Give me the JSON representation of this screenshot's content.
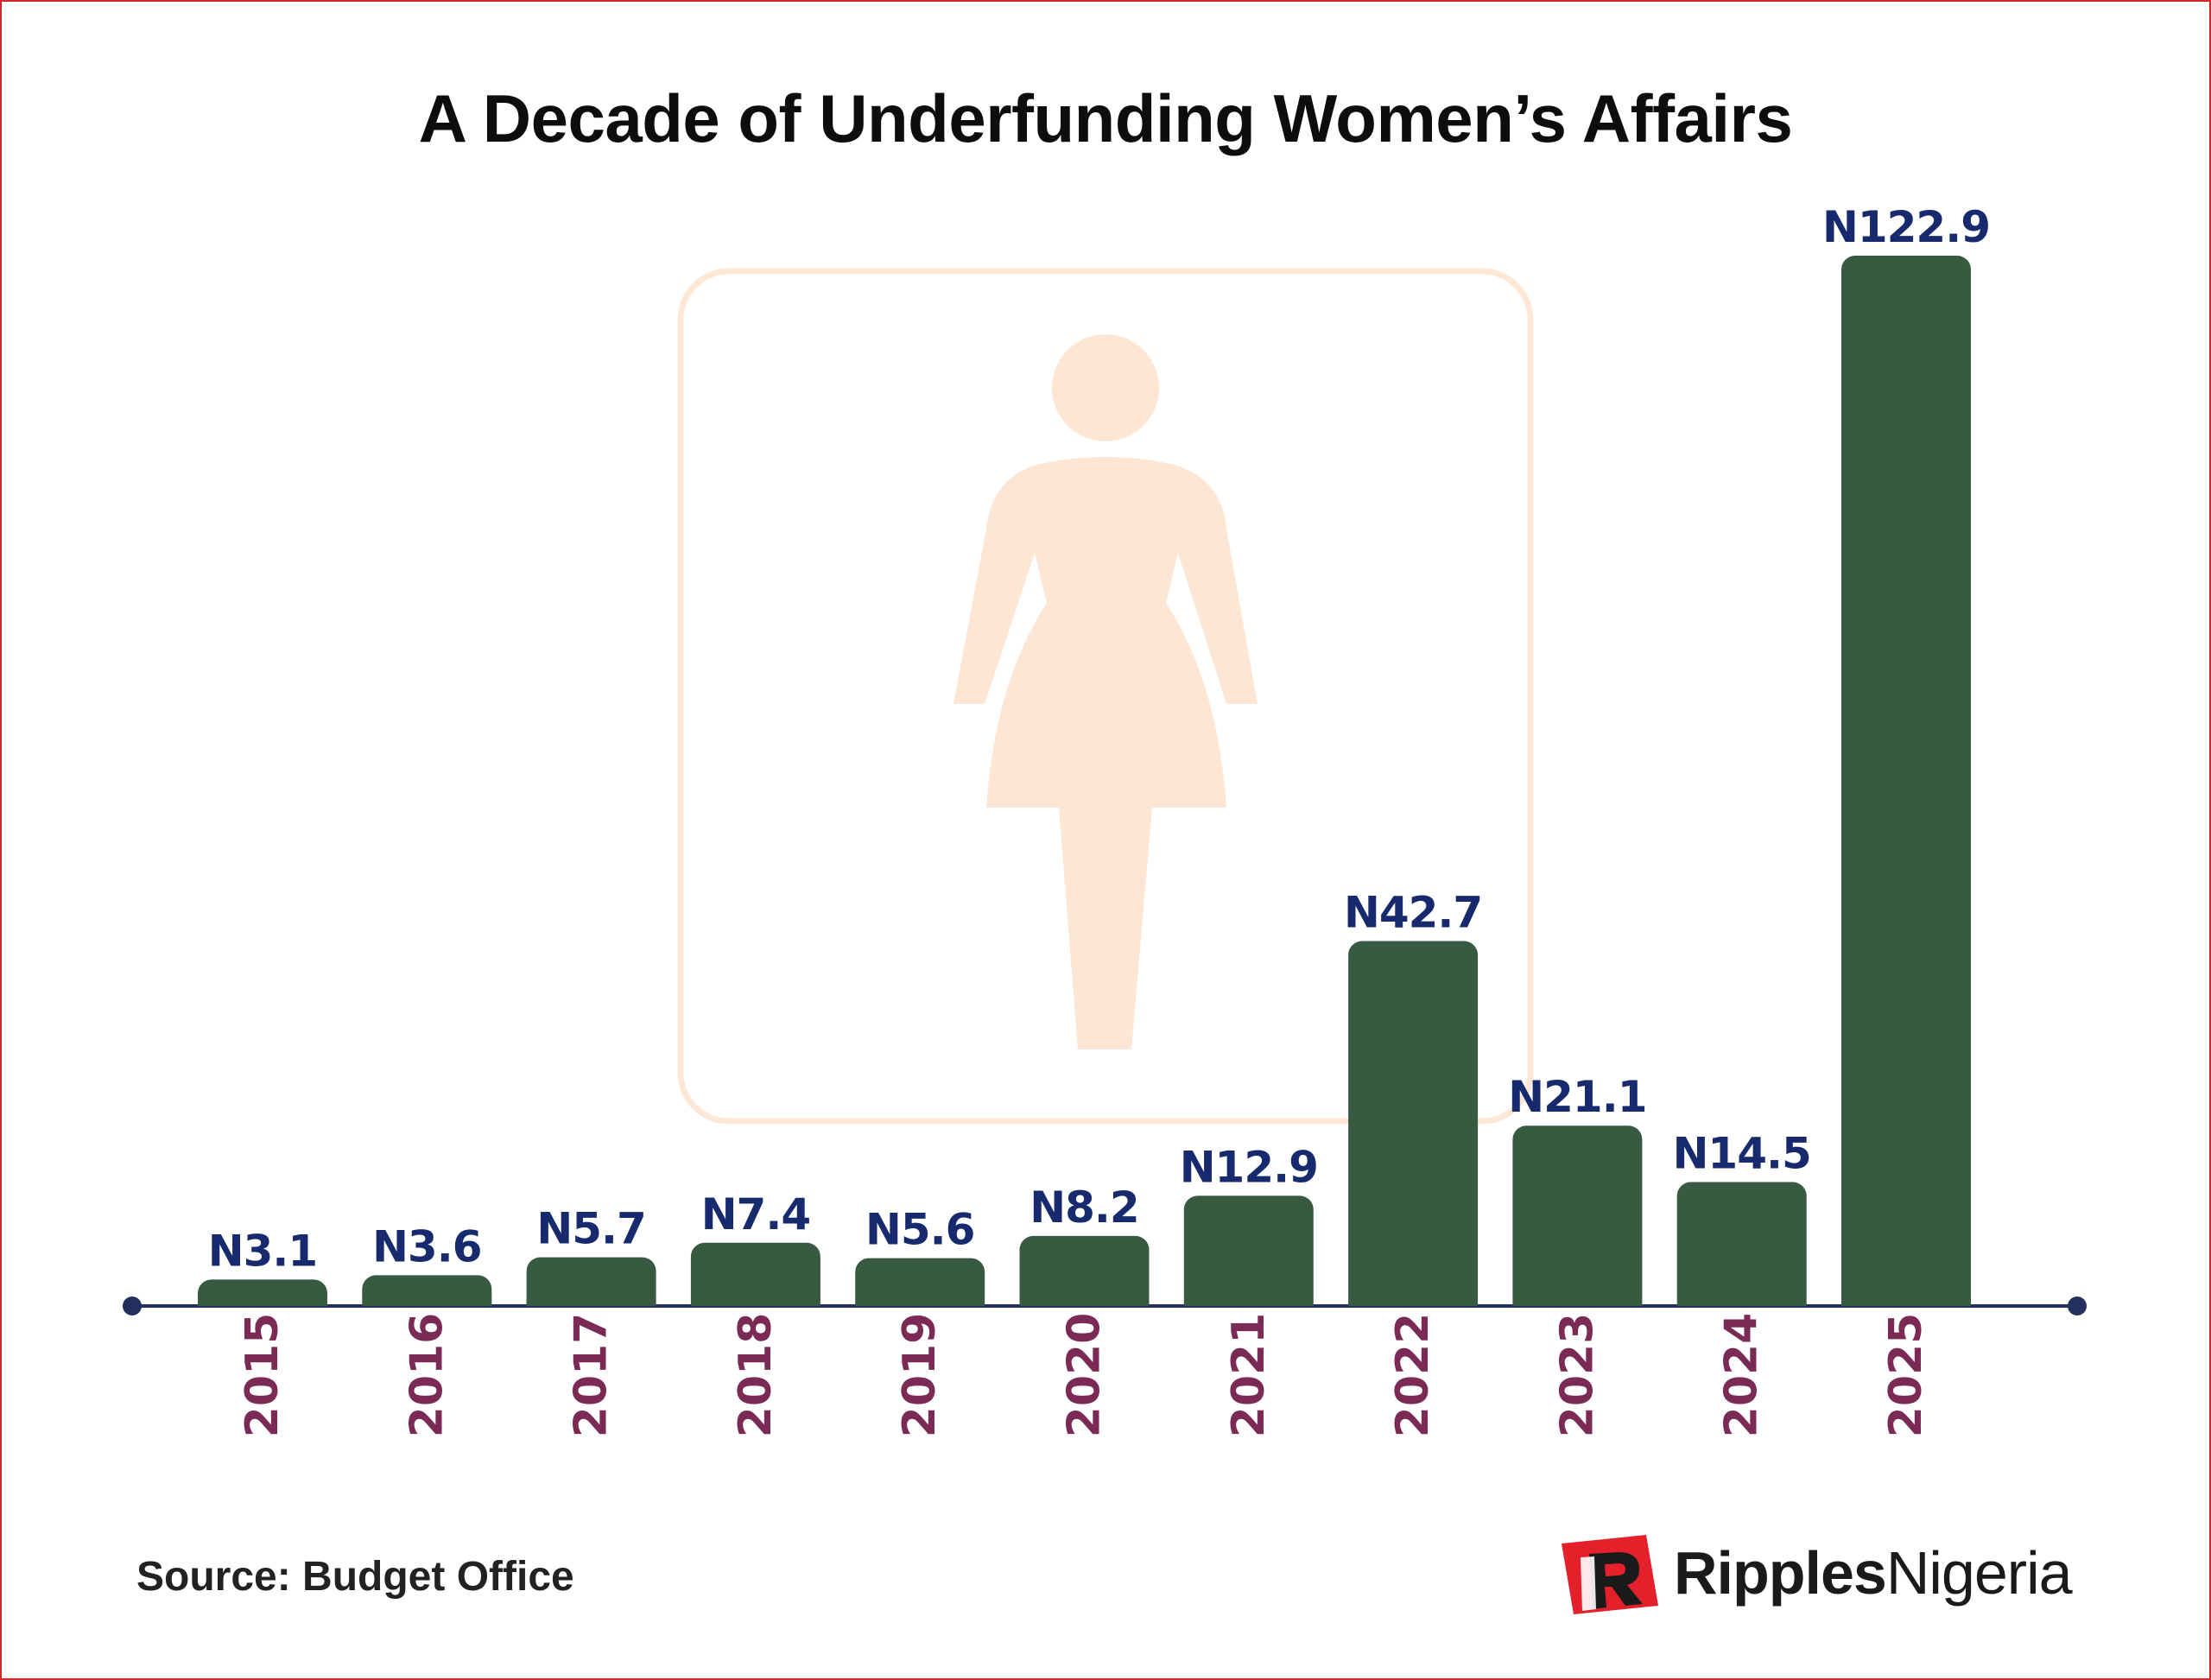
{
  "title": "A Decade of Underfunding Women’s Affairs",
  "source": "Source: Budget Office",
  "logo": {
    "bold": "Ripples",
    "regular": "Nigeria"
  },
  "watermark_icon": "woman-icon",
  "colors": {
    "bar": "#385a40",
    "value_label": "#172a6e",
    "year_label": "#7a2a55",
    "axis": "#232f5c",
    "watermark": "#fde8d7",
    "frame": "#d9262b",
    "logo_red": "#e4202a"
  },
  "chart_data": {
    "type": "bar",
    "title": "A Decade of Underfunding Women’s Affairs",
    "categories": [
      "2015",
      "2016",
      "2017",
      "2018",
      "2019",
      "2020",
      "2021",
      "2022",
      "2023",
      "2024",
      "2025"
    ],
    "values": [
      3.1,
      3.6,
      5.7,
      7.4,
      5.6,
      8.2,
      12.9,
      42.7,
      21.1,
      14.5,
      122.9
    ],
    "value_labels": [
      "N3.1",
      "N3.6",
      "N5.7",
      "N7.4",
      "N5.6",
      "N8.2",
      "N12.9",
      "N42.7",
      "N21.1",
      "N14.5",
      "N122.9"
    ],
    "xlabel": "",
    "ylabel": "",
    "ylim": [
      0,
      122.9
    ],
    "grid": false,
    "legend": "none",
    "category_label_rotation": "vertical"
  }
}
